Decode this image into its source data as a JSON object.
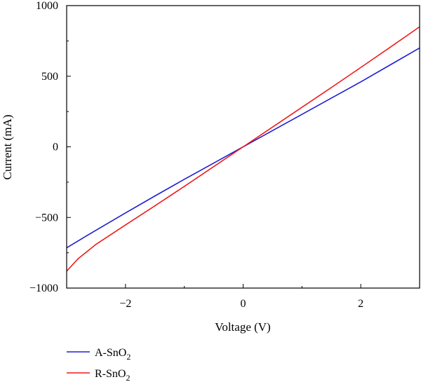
{
  "chart_data": {
    "type": "line",
    "xlabel": "Voltage (V)",
    "ylabel": "Current (mA)",
    "xlim": [
      -3,
      3
    ],
    "ylim": [
      -1000,
      1000
    ],
    "x_ticks": [
      -2,
      0,
      2
    ],
    "x_tick_labels": [
      "−2",
      "0",
      "2"
    ],
    "y_ticks": [
      -1000,
      -500,
      0,
      500,
      1000
    ],
    "y_tick_labels": [
      "−1000",
      "−500",
      "0",
      "500",
      "1000"
    ],
    "grid": false,
    "legend_position": "bottom-left",
    "series": [
      {
        "name": "A-SnO2",
        "legend_base": "A-SnO",
        "legend_sub": "2",
        "color": "#1f1fd1",
        "x": [
          -3,
          -2.5,
          -2,
          -1.5,
          -1,
          -0.5,
          0,
          0.5,
          1,
          1.5,
          2,
          2.5,
          3
        ],
        "y": [
          -715,
          -590,
          -468,
          -348,
          -230,
          -115,
          0,
          115,
          230,
          345,
          460,
          580,
          700
        ]
      },
      {
        "name": "R-SnO2",
        "legend_base": "R-SnO",
        "legend_sub": "2",
        "color": "#ee1c1c",
        "x": [
          -3,
          -2.8,
          -2.5,
          -2,
          -1.5,
          -1,
          -0.5,
          0,
          0.5,
          1,
          1.5,
          2,
          2.5,
          3
        ],
        "y": [
          -880,
          -790,
          -690,
          -553,
          -418,
          -280,
          -140,
          0,
          140,
          280,
          420,
          562,
          705,
          850
        ]
      }
    ]
  }
}
